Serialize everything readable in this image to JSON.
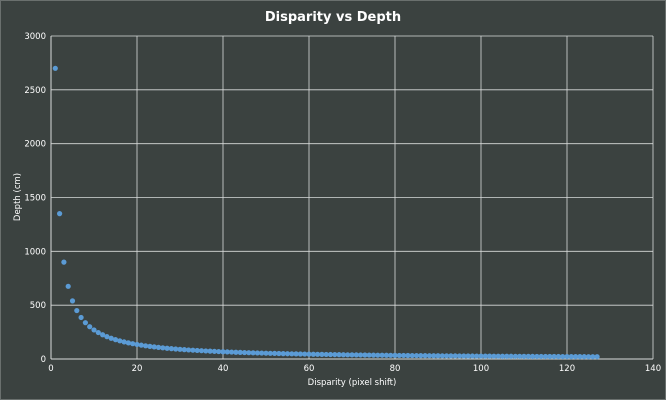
{
  "chart_data": {
    "type": "scatter",
    "title": "Disparity vs Depth",
    "xlabel": "Disparity (pixel shift)",
    "ylabel": "Depth (cm)",
    "xlim": [
      0,
      140
    ],
    "ylim": [
      0,
      3000
    ],
    "x_ticks": [
      "0",
      "20",
      "40",
      "60",
      "80",
      "100",
      "120",
      "140"
    ],
    "y_ticks": [
      "0",
      "500",
      "1000",
      "1500",
      "2000",
      "2500",
      "3000"
    ],
    "grid": true,
    "legend": "none",
    "marker_color": "#5b9bd5",
    "series": [
      {
        "relation": "y = 2700 / x",
        "x": [
          1,
          2,
          3,
          4,
          5,
          6,
          7,
          8,
          9,
          10,
          11,
          12,
          13,
          14,
          15,
          16,
          17,
          18,
          19,
          20,
          21,
          22,
          23,
          24,
          25,
          26,
          27,
          28,
          29,
          30,
          31,
          32,
          33,
          34,
          35,
          36,
          37,
          38,
          39,
          40,
          41,
          42,
          43,
          44,
          45,
          46,
          47,
          48,
          49,
          50,
          51,
          52,
          53,
          54,
          55,
          56,
          57,
          58,
          59,
          60,
          61,
          62,
          63,
          64,
          65,
          66,
          67,
          68,
          69,
          70,
          71,
          72,
          73,
          74,
          75,
          76,
          77,
          78,
          79,
          80,
          81,
          82,
          83,
          84,
          85,
          86,
          87,
          88,
          89,
          90,
          91,
          92,
          93,
          94,
          95,
          96,
          97,
          98,
          99,
          100,
          101,
          102,
          103,
          104,
          105,
          106,
          107,
          108,
          109,
          110,
          111,
          112,
          113,
          114,
          115,
          116,
          117,
          118,
          119,
          120,
          121,
          122,
          123,
          124,
          125,
          126,
          127
        ],
        "values": [
          2700,
          1350,
          900,
          675,
          540,
          450,
          385.7,
          337.5,
          300,
          270,
          245.5,
          225,
          207.7,
          192.9,
          180,
          168.8,
          158.8,
          150,
          142.1,
          135,
          128.6,
          122.7,
          117.4,
          112.5,
          108,
          103.8,
          100,
          96.4,
          93.1,
          90,
          87.1,
          84.4,
          81.8,
          79.4,
          77.1,
          75,
          73,
          71.1,
          69.2,
          67.5,
          65.9,
          64.3,
          62.8,
          61.4,
          60,
          58.7,
          57.4,
          56.3,
          55.1,
          54,
          52.9,
          51.9,
          50.9,
          50,
          49.1,
          48.2,
          47.4,
          46.6,
          45.8,
          45,
          44.3,
          43.5,
          42.9,
          42.2,
          41.5,
          40.9,
          40.3,
          39.7,
          39.1,
          38.6,
          38,
          37.5,
          37,
          36.5,
          36,
          35.5,
          35.1,
          34.6,
          34.2,
          33.8,
          33.3,
          32.9,
          32.5,
          32.1,
          31.8,
          31.4,
          31,
          30.7,
          30.3,
          30,
          29.7,
          29.3,
          29,
          28.7,
          28.4,
          28.1,
          27.8,
          27.6,
          27.3,
          27,
          26.7,
          26.5,
          26.2,
          26,
          25.7,
          25.5,
          25.2,
          25,
          24.8,
          24.5,
          24.3,
          24.1,
          23.9,
          23.7,
          23.5,
          23.3,
          23.1,
          22.9,
          22.7,
          22.5,
          22.3,
          22.1,
          22,
          21.8,
          21.6,
          21.4,
          21.3
        ]
      }
    ]
  }
}
